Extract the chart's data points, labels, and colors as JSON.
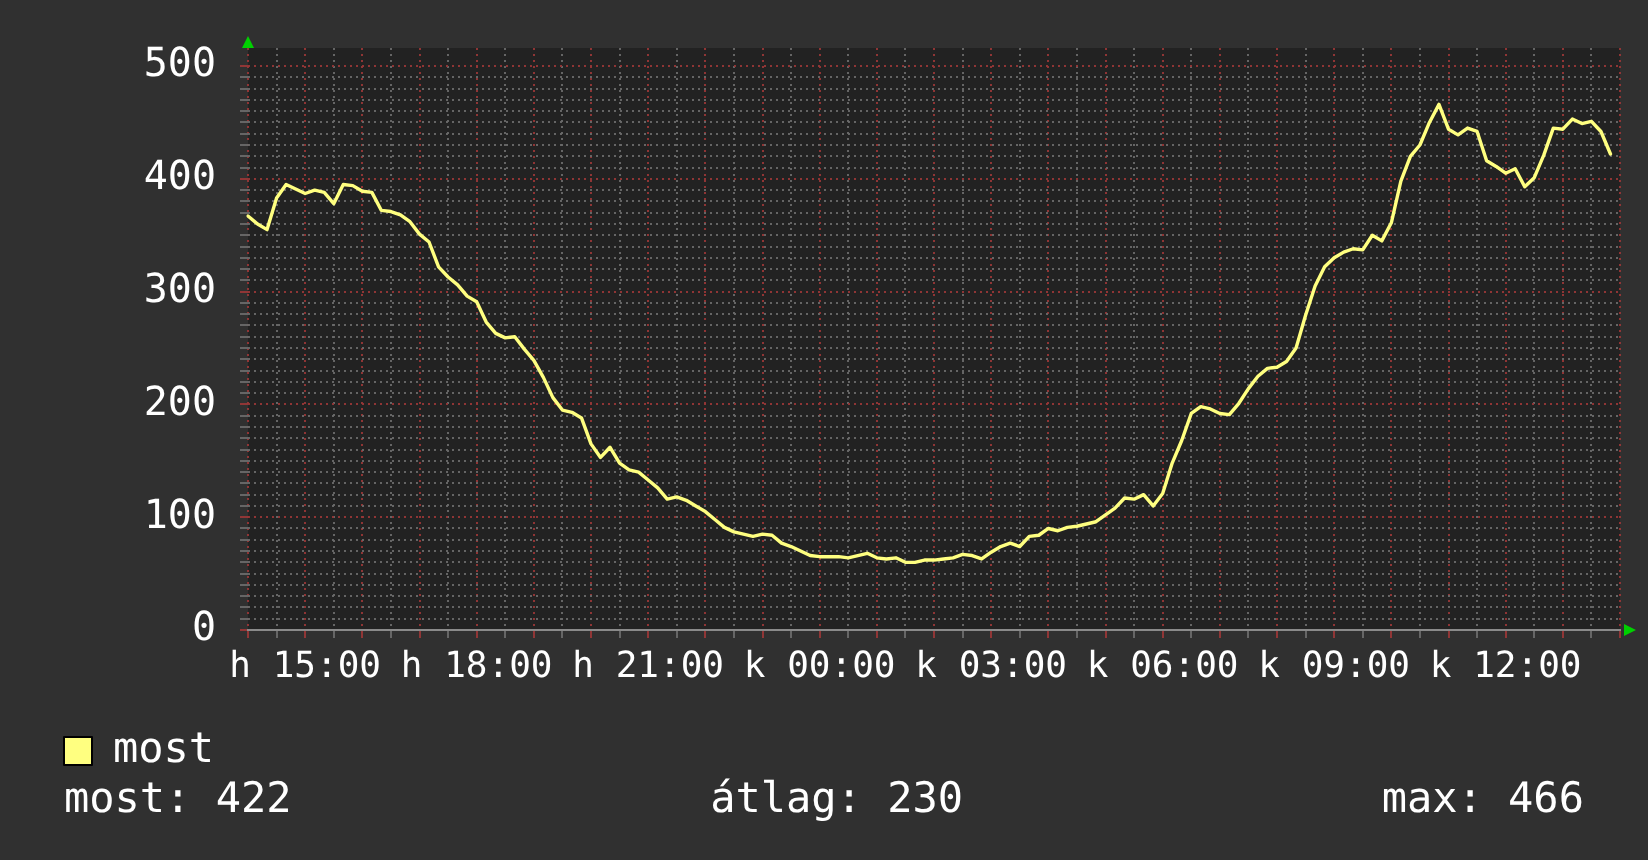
{
  "chart_data": {
    "type": "line",
    "categories": [
      null,
      null,
      null,
      null,
      null,
      null,
      "h 15:00",
      null,
      null,
      null,
      null,
      null,
      null,
      null,
      null,
      null,
      null,
      null,
      null,
      null,
      null,
      null,
      null,
      null,
      "h 18:00",
      null,
      null,
      null,
      null,
      null,
      null,
      null,
      null,
      null,
      null,
      null,
      null,
      null,
      null,
      null,
      null,
      null,
      "h 21:00",
      null,
      null,
      null,
      null,
      null,
      null,
      null,
      null,
      null,
      null,
      null,
      null,
      null,
      null,
      null,
      null,
      null,
      "k 00:00",
      null,
      null,
      null,
      null,
      null,
      null,
      null,
      null,
      null,
      null,
      null,
      null,
      null,
      null,
      null,
      null,
      null,
      "k 03:00",
      null,
      null,
      null,
      null,
      null,
      null,
      null,
      null,
      null,
      null,
      null,
      null,
      null,
      null,
      null,
      null,
      null,
      "k 06:00",
      null,
      null,
      null,
      null,
      null,
      null,
      null,
      null,
      null,
      null,
      null,
      null,
      null,
      null,
      null,
      null,
      null,
      "k 09:00",
      null,
      null,
      null,
      null,
      null,
      null,
      null,
      null,
      null,
      null,
      null,
      null,
      null,
      null,
      null,
      null,
      null,
      "k 12:00",
      null,
      null,
      null,
      null,
      null,
      null,
      null,
      null,
      null,
      null,
      null,
      null
    ],
    "series": [
      {
        "name": "most",
        "color": "#ffff80",
        "values": [
          367,
          360,
          355,
          383,
          395,
          391,
          387,
          390,
          388,
          378,
          395,
          394,
          389,
          388,
          372,
          371,
          368,
          362,
          351,
          344,
          322,
          313,
          306,
          296,
          291,
          273,
          263,
          259,
          260,
          249,
          239,
          224,
          206,
          195,
          193,
          188,
          165,
          153,
          162,
          148,
          142,
          140,
          133,
          126,
          116,
          118,
          115,
          110,
          105,
          98,
          91,
          87,
          85,
          83,
          85,
          84,
          77,
          74,
          70,
          66,
          65,
          65,
          65,
          64,
          66,
          68,
          64,
          63,
          64,
          60,
          60,
          62,
          62,
          63,
          64,
          67,
          66,
          63,
          69,
          74,
          77,
          74,
          83,
          84,
          90,
          88,
          91,
          92,
          94,
          96,
          102,
          108,
          117,
          116,
          120,
          110,
          121,
          148,
          168,
          192,
          198,
          196,
          192,
          191,
          201,
          214,
          225,
          232,
          233,
          238,
          250,
          279,
          305,
          322,
          330,
          335,
          338,
          337,
          350,
          345,
          361,
          398,
          420,
          430,
          450,
          466,
          444,
          439,
          445,
          442,
          416,
          411,
          405,
          409,
          393,
          401,
          421,
          445,
          444,
          453,
          449,
          451,
          442,
          422,
          null
        ]
      }
    ],
    "ylim": [
      0,
      516
    ],
    "yticks": [
      0,
      {
        "value": 10,
        "label": null
      },
      {
        "value": 20,
        "label": null
      },
      {
        "value": 30,
        "label": null
      },
      {
        "value": 40,
        "label": null
      },
      {
        "value": 50,
        "label": null
      },
      {
        "value": 60,
        "label": null
      },
      {
        "value": 70,
        "label": null
      },
      {
        "value": 80,
        "label": null
      },
      {
        "value": 90,
        "label": null
      },
      100,
      {
        "value": 110,
        "label": null
      },
      {
        "value": 120,
        "label": null
      },
      {
        "value": 130,
        "label": null
      },
      {
        "value": 140,
        "label": null
      },
      {
        "value": 150,
        "label": null
      },
      {
        "value": 160,
        "label": null
      },
      {
        "value": 170,
        "label": null
      },
      {
        "value": 180,
        "label": null
      },
      {
        "value": 190,
        "label": null
      },
      200,
      {
        "value": 210,
        "label": null
      },
      {
        "value": 220,
        "label": null
      },
      {
        "value": 230,
        "label": null
      },
      {
        "value": 240,
        "label": null
      },
      {
        "value": 250,
        "label": null
      },
      {
        "value": 260,
        "label": null
      },
      {
        "value": 270,
        "label": null
      },
      {
        "value": 280,
        "label": null
      },
      {
        "value": 290,
        "label": null
      },
      300,
      {
        "value": 310,
        "label": null
      },
      {
        "value": 320,
        "label": null
      },
      {
        "value": 330,
        "label": null
      },
      {
        "value": 340,
        "label": null
      },
      {
        "value": 350,
        "label": null
      },
      {
        "value": 360,
        "label": null
      },
      {
        "value": 370,
        "label": null
      },
      {
        "value": 380,
        "label": null
      },
      {
        "value": 390,
        "label": null
      },
      400,
      {
        "value": 410,
        "label": null
      },
      {
        "value": 420,
        "label": null
      },
      {
        "value": 430,
        "label": null
      },
      {
        "value": 440,
        "label": null
      },
      {
        "value": 450,
        "label": null
      },
      {
        "value": 460,
        "label": null
      },
      {
        "value": 470,
        "label": null
      },
      {
        "value": 480,
        "label": null
      },
      {
        "value": 490,
        "label": null
      },
      500
    ],
    "grid": true,
    "legend": "bottom left",
    "annotations": [
      "most: 422",
      "átlag: 230",
      "max: 466"
    ]
  }
}
